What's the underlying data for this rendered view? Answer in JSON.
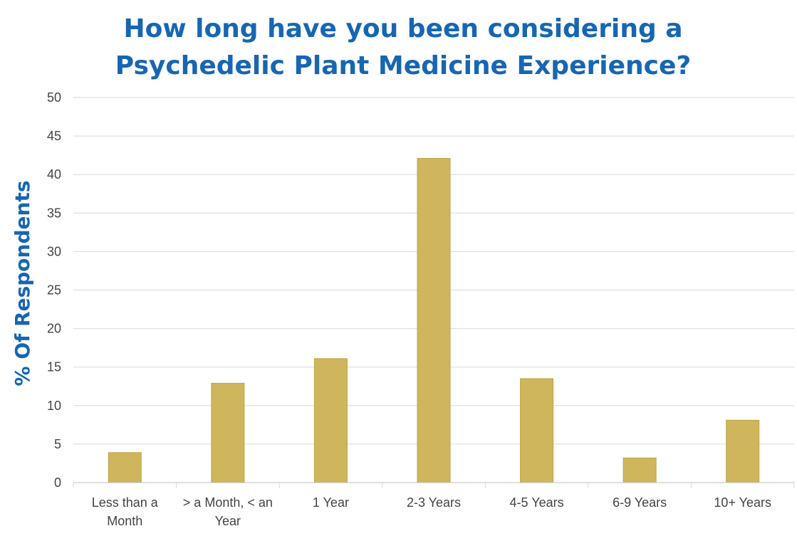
{
  "chart_data": {
    "type": "bar",
    "title_lines": [
      "How long have you been considering a",
      "Psychedelic Plant Medicine Experience?"
    ],
    "xlabel": "",
    "ylabel": "% Of Respondents",
    "ylim": [
      0,
      50
    ],
    "yticks": [
      "0",
      "5",
      "10",
      "15",
      "20",
      "25",
      "30",
      "35",
      "40",
      "45",
      "50"
    ],
    "categories": [
      [
        "Less than a",
        "Month"
      ],
      [
        "> a Month, < an",
        "Year"
      ],
      [
        "1 Year"
      ],
      [
        "2-3 Years"
      ],
      [
        "4-5 Years"
      ],
      [
        "6-9 Years"
      ],
      [
        "10+ Years"
      ]
    ],
    "values": [
      3.9,
      12.9,
      16.1,
      42.1,
      13.5,
      3.2,
      8.1
    ],
    "grid": true,
    "legend": "none",
    "colors": {
      "bar_fill": "#cfb65d",
      "bar_stroke": "#bda444",
      "title": "#1666b4",
      "ylabel": "#1666b4",
      "tick_text": "#444444",
      "grid": "#d9d9d9"
    }
  }
}
